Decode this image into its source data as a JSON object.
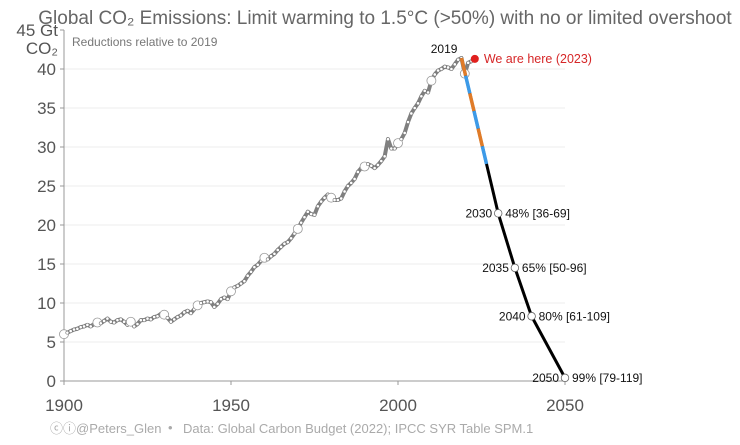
{
  "chart_data": {
    "type": "line",
    "title": "Global CO₂ Emissions: Limit warming to 1.5°C (>50%) with no or limited overshoot",
    "subtitle": "Reductions relative to 2019",
    "ylabel_top": "45 Gt",
    "ylabel_unit": "CO₂",
    "xlim": [
      1900,
      2050
    ],
    "ylim": [
      0,
      45
    ],
    "x_ticks": [
      "1900",
      "1950",
      "2000",
      "2050"
    ],
    "y_ticks": [
      "0",
      "5",
      "10",
      "15",
      "20",
      "25",
      "30",
      "35",
      "40"
    ],
    "grid": true,
    "historical": {
      "start_year": 1900,
      "values": [
        6.0,
        6.2,
        6.4,
        6.6,
        6.7,
        6.9,
        7.0,
        7.2,
        7.0,
        7.3,
        7.5,
        7.4,
        7.7,
        8.0,
        7.6,
        7.5,
        7.8,
        7.9,
        7.6,
        7.2,
        7.6,
        7.0,
        7.3,
        7.8,
        7.8,
        8.0,
        7.9,
        8.2,
        8.3,
        8.6,
        8.5,
        8.1,
        7.6,
        7.9,
        8.2,
        8.4,
        8.8,
        9.0,
        8.7,
        9.2,
        9.7,
        10.0,
        10.1,
        10.2,
        10.1,
        9.5,
        9.9,
        10.5,
        10.7,
        10.5,
        11.5,
        12.0,
        12.2,
        12.5,
        12.8,
        13.5,
        14.0,
        14.6,
        14.9,
        15.4,
        15.8,
        15.6,
        16.0,
        16.3,
        16.8,
        17.2,
        17.6,
        17.8,
        18.3,
        18.9,
        19.5,
        20.3,
        21.0,
        21.7,
        21.4,
        21.3,
        22.4,
        23.0,
        23.5,
        23.9,
        23.5,
        23.2,
        23.2,
        23.4,
        24.3,
        25.0,
        25.4,
        25.9,
        26.8,
        27.3,
        27.5,
        27.8,
        27.6,
        27.3,
        27.7,
        28.2,
        28.8,
        31.0,
        29.8,
        29.8,
        30.5,
        31.0,
        31.8,
        33.2,
        34.3,
        35.0,
        35.6,
        36.5,
        37.2,
        37.0,
        38.5,
        39.3,
        39.8,
        40.0,
        40.3,
        40.2,
        40.0,
        40.6,
        41.2,
        41.4,
        39.4,
        40.8,
        41.0,
        41.3
      ]
    },
    "peak_label": "2019",
    "current": {
      "year": 2023,
      "value": 41.3,
      "label": "We are here (2023)"
    },
    "pathway": {
      "points": [
        [
          2019,
          41.4
        ],
        [
          2030,
          21.5
        ],
        [
          2035,
          14.5
        ],
        [
          2040,
          8.3
        ],
        [
          2050,
          0.4
        ]
      ],
      "dashed_until": 2026.5,
      "annotations": [
        {
          "year": 2030,
          "value": 21.5,
          "year_label": "2030",
          "text": "48% [36-69]"
        },
        {
          "year": 2035,
          "value": 14.5,
          "year_label": "2035",
          "text": "65% [50-96]"
        },
        {
          "year": 2040,
          "value": 8.3,
          "year_label": "2040",
          "text": "80% [61-109]"
        },
        {
          "year": 2050,
          "value": 0.4,
          "year_label": "2050",
          "text": "99% [79-119]"
        }
      ]
    },
    "colors": {
      "historical": "#808080",
      "pathway": "#000000",
      "dash_a": "#e07b28",
      "dash_b": "#3c9ae8",
      "current": "#e0201e"
    }
  },
  "footer": {
    "author": "ⓒⓘ@Peters_Glen",
    "separator": "•",
    "source": "Data: Global Carbon Budget (2022); IPCC SYR Table SPM.1"
  }
}
